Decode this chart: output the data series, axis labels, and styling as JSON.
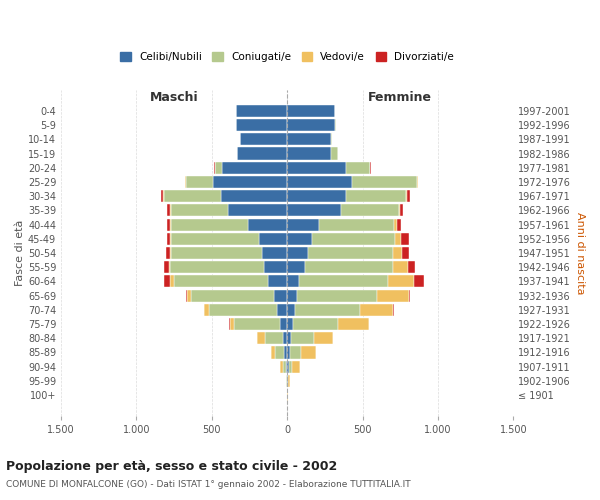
{
  "age_groups": [
    "100+",
    "95-99",
    "90-94",
    "85-89",
    "80-84",
    "75-79",
    "70-74",
    "65-69",
    "60-64",
    "55-59",
    "50-54",
    "45-49",
    "40-44",
    "35-39",
    "30-34",
    "25-29",
    "20-24",
    "15-19",
    "10-14",
    "5-9",
    "0-4"
  ],
  "birth_years": [
    "≤ 1901",
    "1902-1906",
    "1907-1911",
    "1912-1916",
    "1917-1921",
    "1922-1926",
    "1927-1931",
    "1932-1936",
    "1937-1941",
    "1942-1946",
    "1947-1951",
    "1952-1956",
    "1957-1961",
    "1962-1966",
    "1967-1971",
    "1972-1976",
    "1977-1981",
    "1982-1986",
    "1987-1991",
    "1992-1996",
    "1997-2001"
  ],
  "males": {
    "celibi": [
      2,
      4,
      10,
      20,
      30,
      50,
      70,
      90,
      130,
      155,
      170,
      190,
      260,
      390,
      440,
      490,
      430,
      330,
      310,
      340,
      340
    ],
    "coniugati": [
      0,
      2,
      20,
      60,
      120,
      300,
      450,
      550,
      620,
      620,
      600,
      580,
      510,
      380,
      380,
      180,
      50,
      5,
      2,
      0,
      0
    ],
    "vedovi": [
      0,
      2,
      15,
      30,
      50,
      30,
      30,
      25,
      25,
      10,
      5,
      5,
      5,
      5,
      5,
      5,
      2,
      0,
      0,
      0,
      0
    ],
    "divorziati": [
      0,
      0,
      0,
      0,
      0,
      5,
      5,
      5,
      40,
      30,
      30,
      20,
      25,
      20,
      15,
      5,
      2,
      0,
      0,
      0,
      0
    ]
  },
  "females": {
    "nubili": [
      2,
      4,
      10,
      20,
      25,
      40,
      55,
      65,
      80,
      120,
      140,
      165,
      210,
      360,
      390,
      430,
      390,
      290,
      290,
      320,
      320
    ],
    "coniugate": [
      0,
      4,
      25,
      70,
      150,
      300,
      430,
      530,
      590,
      580,
      560,
      550,
      500,
      380,
      400,
      430,
      160,
      50,
      10,
      2,
      0
    ],
    "vedove": [
      1,
      10,
      50,
      100,
      130,
      200,
      220,
      210,
      170,
      100,
      60,
      40,
      20,
      10,
      5,
      5,
      2,
      0,
      0,
      0,
      0
    ],
    "divorziate": [
      0,
      0,
      0,
      0,
      0,
      5,
      5,
      10,
      70,
      50,
      50,
      50,
      25,
      20,
      20,
      5,
      2,
      0,
      0,
      0,
      0
    ]
  },
  "colors": {
    "celibi": "#3a6ea5",
    "coniugati": "#b5c98e",
    "vedovi": "#f0c060",
    "divorziati": "#cc2222"
  },
  "xlim": 1500,
  "title": "Popolazione per età, sesso e stato civile - 2002",
  "subtitle": "COMUNE DI MONFALCONE (GO) - Dati ISTAT 1° gennaio 2002 - Elaborazione TUTTITALIA.IT",
  "ylabel_left": "Fasce di età",
  "ylabel_right": "Anni di nascita",
  "xlabel_maschi": "Maschi",
  "xlabel_femmine": "Femmine",
  "legend_labels": [
    "Celibi/Nubili",
    "Coniugati/e",
    "Vedovi/e",
    "Divorziati/e"
  ]
}
